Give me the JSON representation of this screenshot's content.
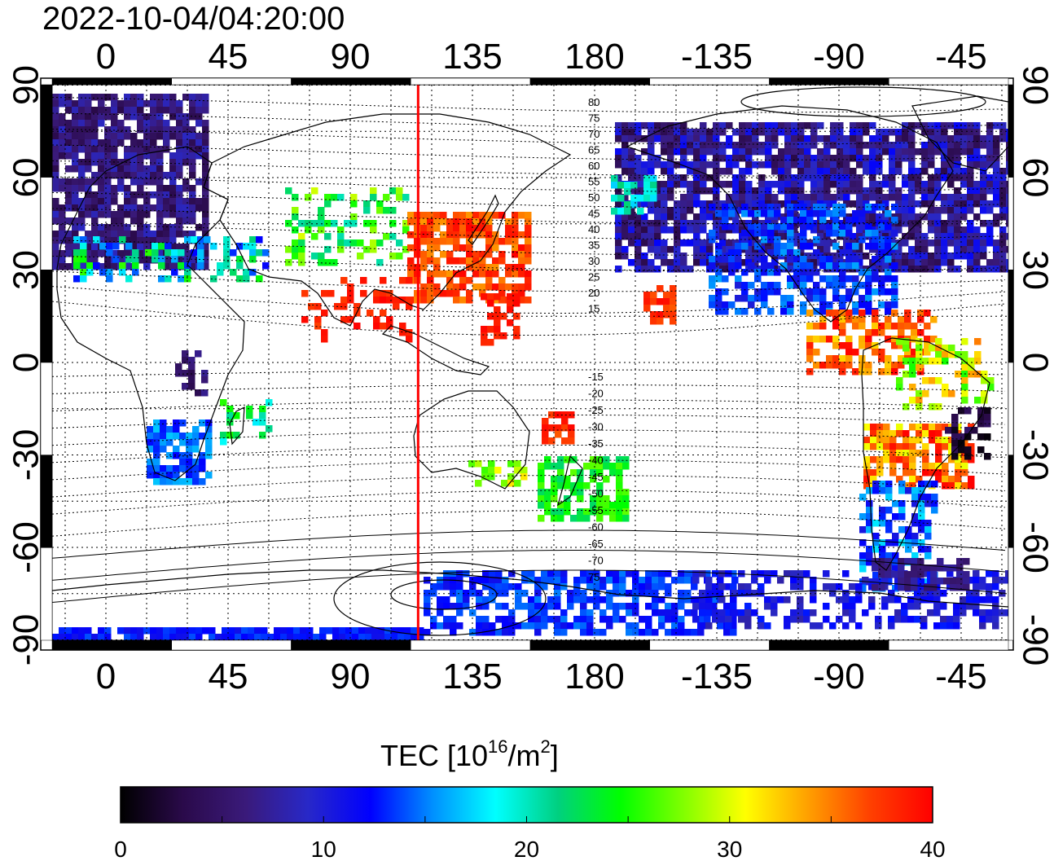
{
  "title": "2022-10-04/04:20:00",
  "map": {
    "x_ticks": [
      "0",
      "45",
      "90",
      "135",
      "180",
      "-135",
      "-90",
      "-45"
    ],
    "y_ticks": [
      "90",
      "60",
      "30",
      "0",
      "-30",
      "-60",
      "-90"
    ],
    "meridian_marker_lon": 115,
    "marker_color": "#ff0000",
    "magnetic_lat_labels_north": [
      "80",
      "75",
      "70",
      "65",
      "60",
      "55",
      "50",
      "45",
      "40",
      "35",
      "30",
      "25",
      "20",
      "15"
    ],
    "magnetic_lat_labels_south": [
      "-15",
      "-20",
      "-25",
      "-30",
      "-35",
      "-40",
      "-45",
      "-50",
      "-55",
      "-60",
      "-65",
      "-70",
      "75"
    ]
  },
  "colorbar": {
    "label": "TEC  [10",
    "label_sup": "16",
    "label_mid": "/m",
    "label_sup2": "2",
    "label_end": "]",
    "min": 0,
    "max": 40,
    "ticks": [
      "0",
      "10",
      "20",
      "30",
      "40"
    ],
    "colors": [
      "#000000",
      "#2a0a4a",
      "#3a1a7a",
      "#2828c8",
      "#0000ff",
      "#0090ff",
      "#00ffff",
      "#00d080",
      "#00ff00",
      "#80ff00",
      "#ffff00",
      "#ffa000",
      "#ff4000",
      "#ff0000"
    ]
  }
}
